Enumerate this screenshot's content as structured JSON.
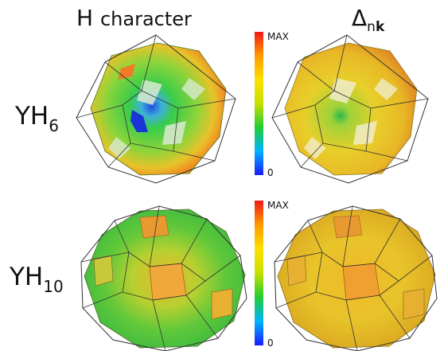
{
  "headers": {
    "h_letter": "H",
    "h_word": "character",
    "delta_symbol": "Δ",
    "delta_sub_n": "n",
    "delta_sub_k": "k"
  },
  "rows": [
    {
      "base": "YH",
      "sub": "6"
    },
    {
      "base": "YH",
      "sub": "10"
    }
  ],
  "colorbar": {
    "max_label": "MAX",
    "min_label": "0",
    "colors": [
      "#1a1aff",
      "#00b4ff",
      "#22cc33",
      "#c8e000",
      "#ffe000",
      "#ff9a00",
      "#f01818"
    ]
  }
}
